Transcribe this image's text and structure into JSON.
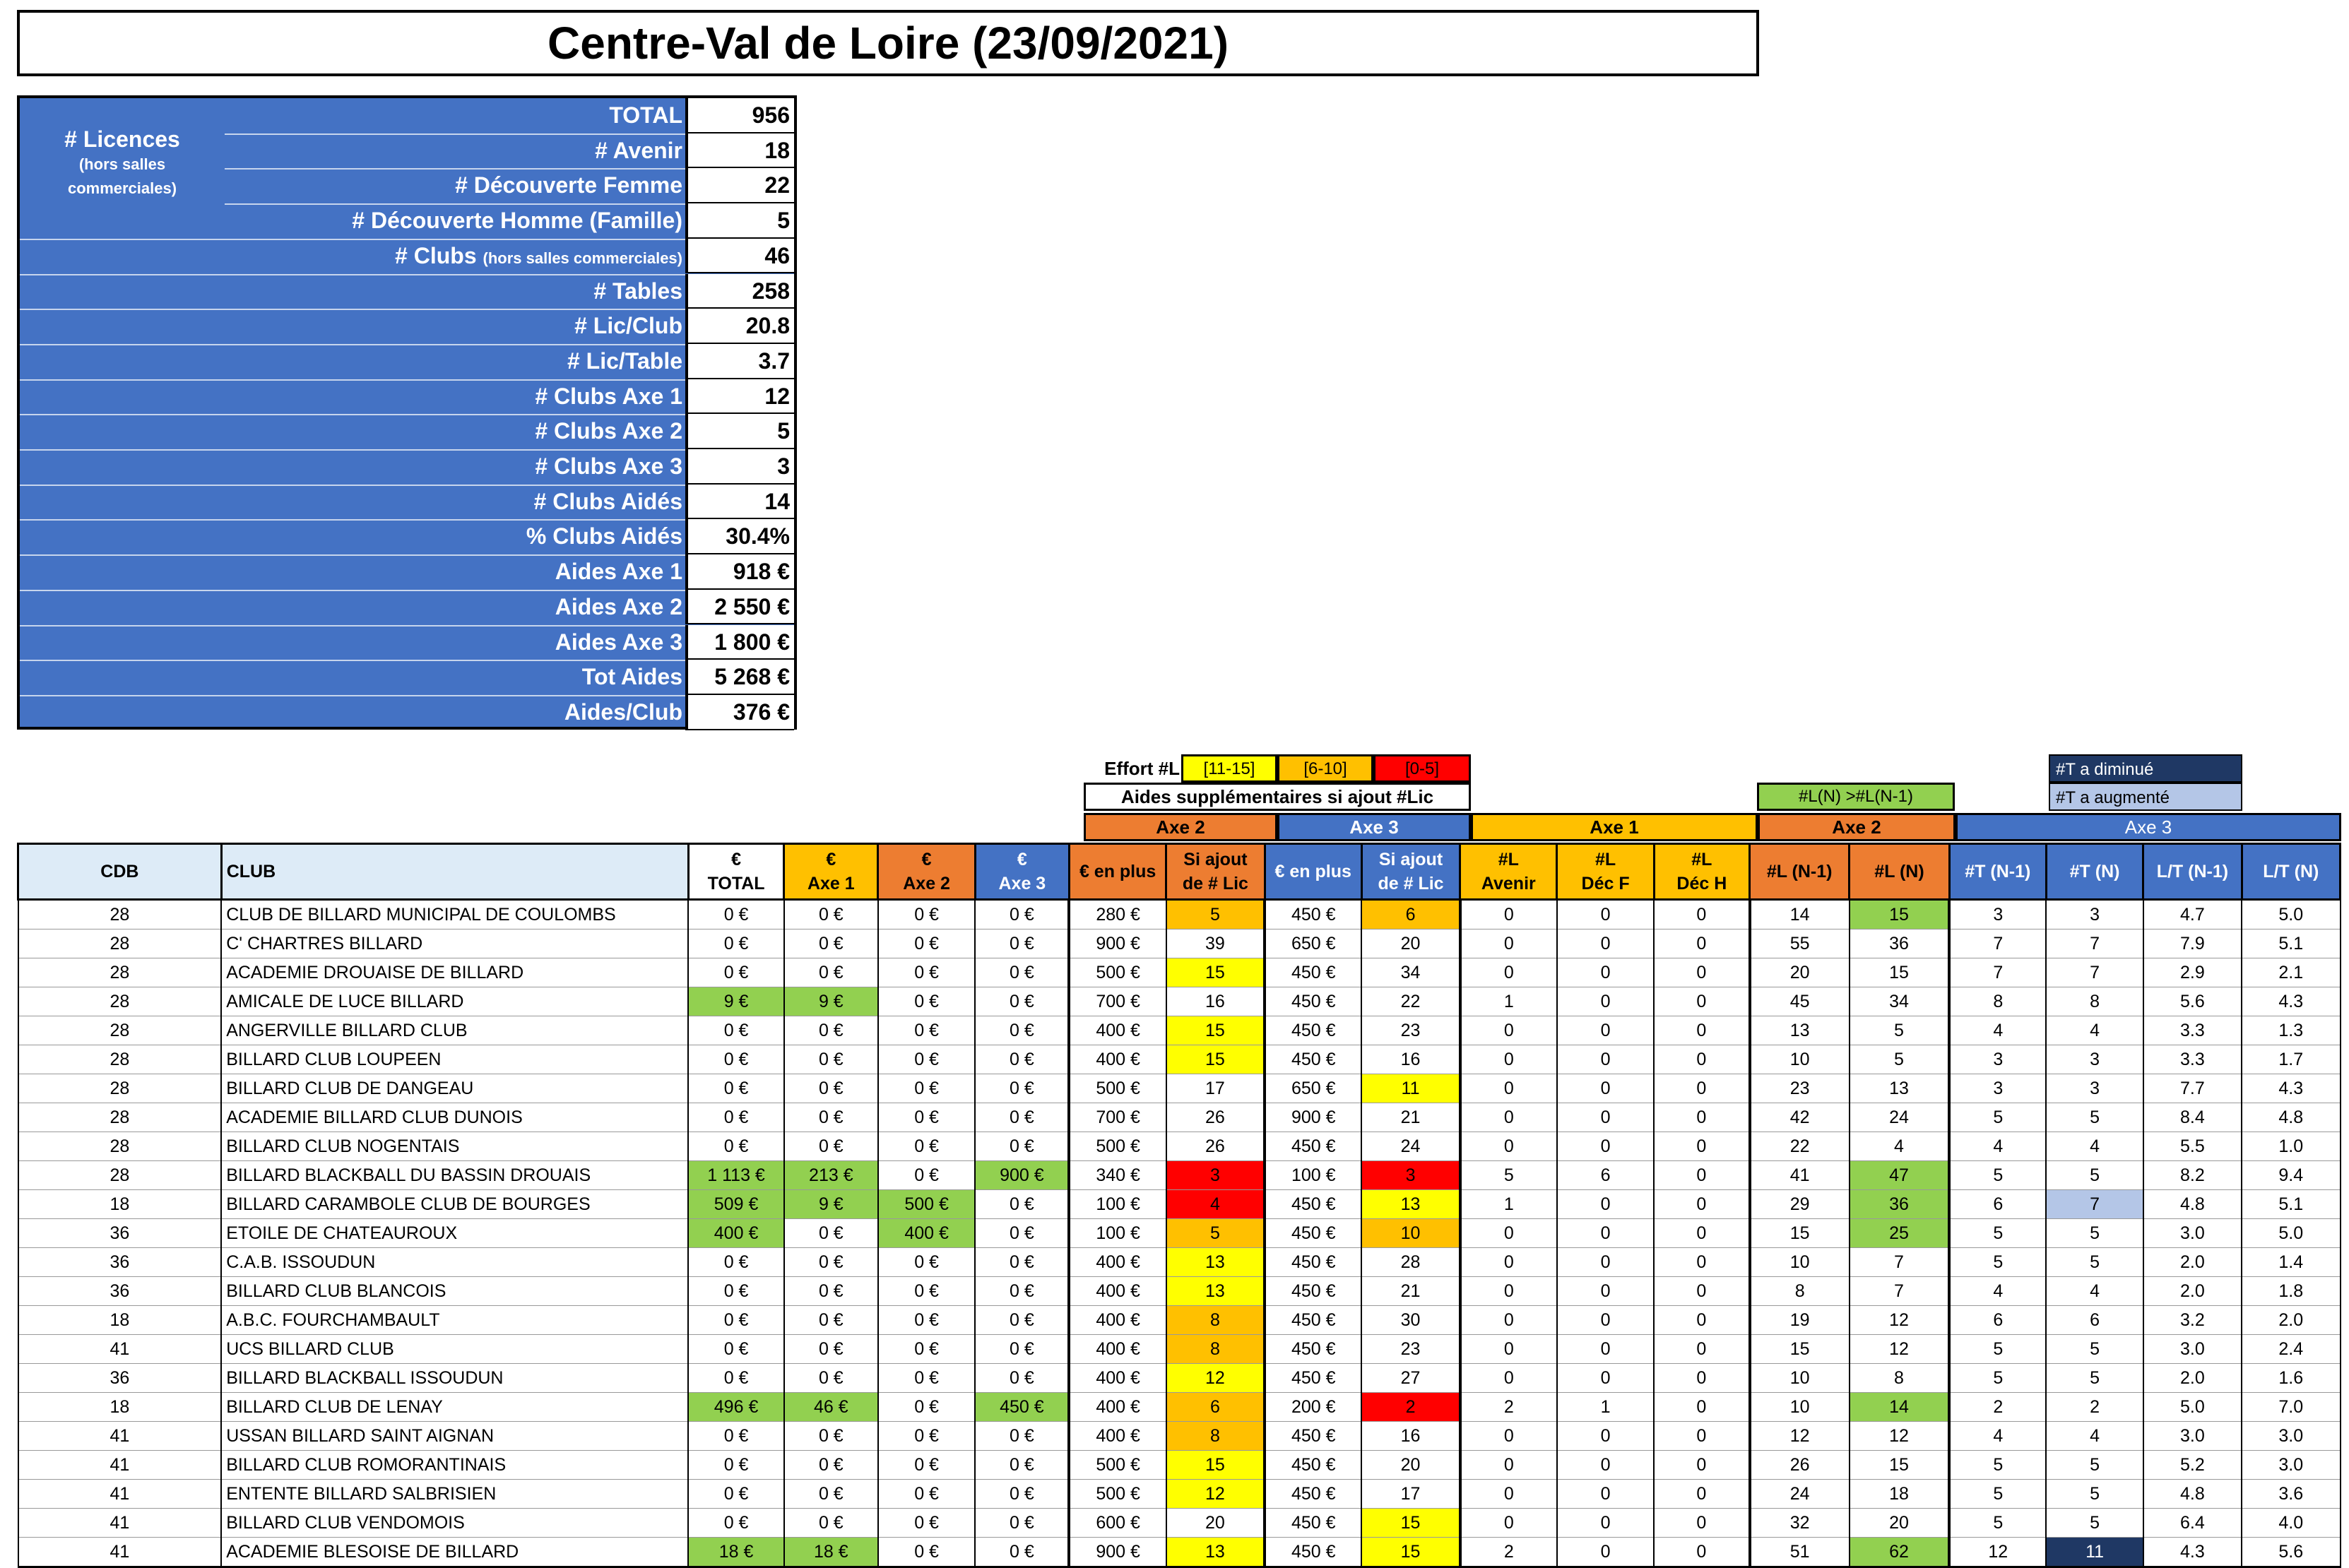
{
  "title": "Centre-Val de Loire (23/09/2021)",
  "summary": {
    "licences_label": "# Licences",
    "licences_sub1": "(hors salles",
    "licences_sub2": "commerciales)",
    "rows": [
      {
        "label": "TOTAL",
        "value": "956"
      },
      {
        "label": "# Avenir",
        "value": "18"
      },
      {
        "label": "# Découverte Femme",
        "value": "22"
      },
      {
        "label": "# Découverte Homme (Famille)",
        "value": "5"
      },
      {
        "label": "# Clubs",
        "label_small": "(hors salles commerciales)",
        "value": "46"
      },
      {
        "label": "# Tables",
        "value": "258"
      },
      {
        "label": "# Lic/Club",
        "value": "20.8"
      },
      {
        "label": "# Lic/Table",
        "value": "3.7"
      },
      {
        "label": "# Clubs Axe 1",
        "value": "12"
      },
      {
        "label": "# Clubs Axe 2",
        "value": "5"
      },
      {
        "label": "# Clubs Axe 3",
        "value": "3"
      },
      {
        "label": "# Clubs Aidés",
        "value": "14"
      },
      {
        "label": "% Clubs Aidés",
        "value": "30.4%"
      },
      {
        "label": "Aides Axe 1",
        "value": "918 €"
      },
      {
        "label": "Aides Axe 2",
        "value": "2 550 €"
      },
      {
        "label": "Aides Axe 3",
        "value": "1 800 €"
      },
      {
        "label": "Tot Aides",
        "value": "5 268 €"
      },
      {
        "label": "Aides/Club",
        "value": "376 €"
      }
    ]
  },
  "legend": {
    "effort_label": "Effort #L",
    "effort_ranges": [
      "[11-15]",
      "[6-10]",
      "[0-5]"
    ],
    "effort_colors": [
      "#ffff00",
      "#ffc000",
      "#ff0000"
    ],
    "aides_supplementaires": "Aides supplémentaires si  ajout #Lic",
    "ln_greater": "#L(N) >#L(N-1)",
    "t_diminue": "#T a diminué",
    "t_augmente": "#T a augmenté"
  },
  "groups": {
    "axe2_left": "Axe 2",
    "axe3_left": "Axe 3",
    "axe1": "Axe 1",
    "axe2_right": "Axe 2",
    "axe3_right": "Axe 3"
  },
  "headers": {
    "cdb": "CDB",
    "club": "CLUB",
    "total": [
      "€",
      "TOTAL"
    ],
    "axe1": [
      "€",
      "Axe 1"
    ],
    "axe2": [
      "€",
      "Axe 2"
    ],
    "axe3": [
      "€",
      "Axe 3"
    ],
    "en_plus_2": "€ en plus",
    "si_ajout_2": [
      "Si ajout",
      "de # Lic"
    ],
    "en_plus_3": "€ en plus",
    "si_ajout_3": [
      "Si ajout",
      "de # Lic"
    ],
    "l_avenir": [
      "#L",
      "Avenir"
    ],
    "l_dec_f": [
      "#L",
      "Déc F"
    ],
    "l_dec_h": [
      "#L",
      "Déc H"
    ],
    "l_n1": "#L (N-1)",
    "l_n": "#L (N)",
    "t_n1": "#T (N-1)",
    "t_n": "#T (N)",
    "lt_n1": "L/T (N-1)",
    "lt_n": "L/T (N)"
  },
  "rows": [
    {
      "cdb": "28",
      "club": "CLUB DE BILLARD MUNICIPAL DE COULOMBS",
      "total": "0 €",
      "a1": "0 €",
      "a2": "0 €",
      "a3": "0 €",
      "p2": "280 €",
      "s2": "5",
      "s2c": "orange",
      "p3": "450 €",
      "s3": "6",
      "s3c": "orange",
      "av": "0",
      "df": "0",
      "dh": "0",
      "ln1": "14",
      "ln": "15",
      "lnc": "green",
      "tn1": "3",
      "tn": "3",
      "tnc": "",
      "lt1": "4.7",
      "lt": "5.0",
      "tc": "",
      "a1c": "",
      "a2c": "",
      "a3c": ""
    },
    {
      "cdb": "28",
      "club": "C' CHARTRES BILLARD",
      "total": "0 €",
      "a1": "0 €",
      "a2": "0 €",
      "a3": "0 €",
      "p2": "900 €",
      "s2": "39",
      "s2c": "",
      "p3": "650 €",
      "s3": "20",
      "s3c": "",
      "av": "0",
      "df": "0",
      "dh": "0",
      "ln1": "55",
      "ln": "36",
      "lnc": "",
      "tn1": "7",
      "tn": "7",
      "tnc": "",
      "lt1": "7.9",
      "lt": "5.1",
      "tc": "",
      "a1c": "",
      "a2c": "",
      "a3c": ""
    },
    {
      "cdb": "28",
      "club": "ACADEMIE DROUAISE DE BILLARD",
      "total": "0 €",
      "a1": "0 €",
      "a2": "0 €",
      "a3": "0 €",
      "p2": "500 €",
      "s2": "15",
      "s2c": "yellow",
      "p3": "450 €",
      "s3": "34",
      "s3c": "",
      "av": "0",
      "df": "0",
      "dh": "0",
      "ln1": "20",
      "ln": "15",
      "lnc": "",
      "tn1": "7",
      "tn": "7",
      "tnc": "",
      "lt1": "2.9",
      "lt": "2.1",
      "tc": "",
      "a1c": "",
      "a2c": "",
      "a3c": ""
    },
    {
      "cdb": "28",
      "club": "AMICALE DE LUCE BILLARD",
      "total": "9 €",
      "a1": "9 €",
      "a2": "0 €",
      "a3": "0 €",
      "p2": "700 €",
      "s2": "16",
      "s2c": "",
      "p3": "450 €",
      "s3": "22",
      "s3c": "",
      "av": "1",
      "df": "0",
      "dh": "0",
      "ln1": "45",
      "ln": "34",
      "lnc": "",
      "tn1": "8",
      "tn": "8",
      "tnc": "",
      "lt1": "5.6",
      "lt": "4.3",
      "tc": "green",
      "a1c": "green",
      "a2c": "",
      "a3c": ""
    },
    {
      "cdb": "28",
      "club": "ANGERVILLE BILLARD CLUB",
      "total": "0 €",
      "a1": "0 €",
      "a2": "0 €",
      "a3": "0 €",
      "p2": "400 €",
      "s2": "15",
      "s2c": "yellow",
      "p3": "450 €",
      "s3": "23",
      "s3c": "",
      "av": "0",
      "df": "0",
      "dh": "0",
      "ln1": "13",
      "ln": "5",
      "lnc": "",
      "tn1": "4",
      "tn": "4",
      "tnc": "",
      "lt1": "3.3",
      "lt": "1.3",
      "tc": "",
      "a1c": "",
      "a2c": "",
      "a3c": ""
    },
    {
      "cdb": "28",
      "club": "BILLARD CLUB LOUPEEN",
      "total": "0 €",
      "a1": "0 €",
      "a2": "0 €",
      "a3": "0 €",
      "p2": "400 €",
      "s2": "15",
      "s2c": "yellow",
      "p3": "450 €",
      "s3": "16",
      "s3c": "",
      "av": "0",
      "df": "0",
      "dh": "0",
      "ln1": "10",
      "ln": "5",
      "lnc": "",
      "tn1": "3",
      "tn": "3",
      "tnc": "",
      "lt1": "3.3",
      "lt": "1.7",
      "tc": "",
      "a1c": "",
      "a2c": "",
      "a3c": ""
    },
    {
      "cdb": "28",
      "club": "BILLARD CLUB DE DANGEAU",
      "total": "0 €",
      "a1": "0 €",
      "a2": "0 €",
      "a3": "0 €",
      "p2": "500 €",
      "s2": "17",
      "s2c": "",
      "p3": "650 €",
      "s3": "11",
      "s3c": "yellow",
      "av": "0",
      "df": "0",
      "dh": "0",
      "ln1": "23",
      "ln": "13",
      "lnc": "",
      "tn1": "3",
      "tn": "3",
      "tnc": "",
      "lt1": "7.7",
      "lt": "4.3",
      "tc": "",
      "a1c": "",
      "a2c": "",
      "a3c": ""
    },
    {
      "cdb": "28",
      "club": "ACADEMIE BILLARD CLUB DUNOIS",
      "total": "0 €",
      "a1": "0 €",
      "a2": "0 €",
      "a3": "0 €",
      "p2": "700 €",
      "s2": "26",
      "s2c": "",
      "p3": "900 €",
      "s3": "21",
      "s3c": "",
      "av": "0",
      "df": "0",
      "dh": "0",
      "ln1": "42",
      "ln": "24",
      "lnc": "",
      "tn1": "5",
      "tn": "5",
      "tnc": "",
      "lt1": "8.4",
      "lt": "4.8",
      "tc": "",
      "a1c": "",
      "a2c": "",
      "a3c": ""
    },
    {
      "cdb": "28",
      "club": "BILLARD CLUB NOGENTAIS",
      "total": "0 €",
      "a1": "0 €",
      "a2": "0 €",
      "a3": "0 €",
      "p2": "500 €",
      "s2": "26",
      "s2c": "",
      "p3": "450 €",
      "s3": "24",
      "s3c": "",
      "av": "0",
      "df": "0",
      "dh": "0",
      "ln1": "22",
      "ln": "4",
      "lnc": "",
      "tn1": "4",
      "tn": "4",
      "tnc": "",
      "lt1": "5.5",
      "lt": "1.0",
      "tc": "",
      "a1c": "",
      "a2c": "",
      "a3c": ""
    },
    {
      "cdb": "28",
      "club": "BILLARD BLACKBALL DU BASSIN DROUAIS",
      "total": "1 113 €",
      "a1": "213 €",
      "a2": "0 €",
      "a3": "900 €",
      "p2": "340 €",
      "s2": "3",
      "s2c": "red",
      "p3": "100 €",
      "s3": "3",
      "s3c": "red",
      "av": "5",
      "df": "6",
      "dh": "0",
      "ln1": "41",
      "ln": "47",
      "lnc": "green",
      "tn1": "5",
      "tn": "5",
      "tnc": "",
      "lt1": "8.2",
      "lt": "9.4",
      "tc": "green",
      "a1c": "green",
      "a2c": "",
      "a3c": "green"
    },
    {
      "cdb": "18",
      "club": "BILLARD CARAMBOLE CLUB DE BOURGES",
      "total": "509 €",
      "a1": "9 €",
      "a2": "500 €",
      "a3": "0 €",
      "p2": "100 €",
      "s2": "4",
      "s2c": "red",
      "p3": "450 €",
      "s3": "13",
      "s3c": "yellow",
      "av": "1",
      "df": "0",
      "dh": "0",
      "ln1": "29",
      "ln": "36",
      "lnc": "green",
      "tn1": "6",
      "tn": "7",
      "tnc": "lblue",
      "lt1": "4.8",
      "lt": "5.1",
      "tc": "green",
      "a1c": "green",
      "a2c": "green",
      "a3c": ""
    },
    {
      "cdb": "36",
      "club": "ETOILE DE CHATEAUROUX",
      "total": "400 €",
      "a1": "0 €",
      "a2": "400 €",
      "a3": "0 €",
      "p2": "100 €",
      "s2": "5",
      "s2c": "orange",
      "p3": "450 €",
      "s3": "10",
      "s3c": "orange",
      "av": "0",
      "df": "0",
      "dh": "0",
      "ln1": "15",
      "ln": "25",
      "lnc": "green",
      "tn1": "5",
      "tn": "5",
      "tnc": "",
      "lt1": "3.0",
      "lt": "5.0",
      "tc": "green",
      "a1c": "",
      "a2c": "green",
      "a3c": ""
    },
    {
      "cdb": "36",
      "club": "C.A.B. ISSOUDUN",
      "total": "0 €",
      "a1": "0 €",
      "a2": "0 €",
      "a3": "0 €",
      "p2": "400 €",
      "s2": "13",
      "s2c": "yellow",
      "p3": "450 €",
      "s3": "28",
      "s3c": "",
      "av": "0",
      "df": "0",
      "dh": "0",
      "ln1": "10",
      "ln": "7",
      "lnc": "",
      "tn1": "5",
      "tn": "5",
      "tnc": "",
      "lt1": "2.0",
      "lt": "1.4",
      "tc": "",
      "a1c": "",
      "a2c": "",
      "a3c": ""
    },
    {
      "cdb": "36",
      "club": "BILLARD CLUB BLANCOIS",
      "total": "0 €",
      "a1": "0 €",
      "a2": "0 €",
      "a3": "0 €",
      "p2": "400 €",
      "s2": "13",
      "s2c": "yellow",
      "p3": "450 €",
      "s3": "21",
      "s3c": "",
      "av": "0",
      "df": "0",
      "dh": "0",
      "ln1": "8",
      "ln": "7",
      "lnc": "",
      "tn1": "4",
      "tn": "4",
      "tnc": "",
      "lt1": "2.0",
      "lt": "1.8",
      "tc": "",
      "a1c": "",
      "a2c": "",
      "a3c": ""
    },
    {
      "cdb": "18",
      "club": "A.B.C. FOURCHAMBAULT",
      "total": "0 €",
      "a1": "0 €",
      "a2": "0 €",
      "a3": "0 €",
      "p2": "400 €",
      "s2": "8",
      "s2c": "orange",
      "p3": "450 €",
      "s3": "30",
      "s3c": "",
      "av": "0",
      "df": "0",
      "dh": "0",
      "ln1": "19",
      "ln": "12",
      "lnc": "",
      "tn1": "6",
      "tn": "6",
      "tnc": "",
      "lt1": "3.2",
      "lt": "2.0",
      "tc": "",
      "a1c": "",
      "a2c": "",
      "a3c": ""
    },
    {
      "cdb": "41",
      "club": "UCS BILLARD CLUB",
      "total": "0 €",
      "a1": "0 €",
      "a2": "0 €",
      "a3": "0 €",
      "p2": "400 €",
      "s2": "8",
      "s2c": "orange",
      "p3": "450 €",
      "s3": "23",
      "s3c": "",
      "av": "0",
      "df": "0",
      "dh": "0",
      "ln1": "15",
      "ln": "12",
      "lnc": "",
      "tn1": "5",
      "tn": "5",
      "tnc": "",
      "lt1": "3.0",
      "lt": "2.4",
      "tc": "",
      "a1c": "",
      "a2c": "",
      "a3c": ""
    },
    {
      "cdb": "36",
      "club": "BILLARD BLACKBALL ISSOUDUN",
      "total": "0 €",
      "a1": "0 €",
      "a2": "0 €",
      "a3": "0 €",
      "p2": "400 €",
      "s2": "12",
      "s2c": "yellow",
      "p3": "450 €",
      "s3": "27",
      "s3c": "",
      "av": "0",
      "df": "0",
      "dh": "0",
      "ln1": "10",
      "ln": "8",
      "lnc": "",
      "tn1": "5",
      "tn": "5",
      "tnc": "",
      "lt1": "2.0",
      "lt": "1.6",
      "tc": "",
      "a1c": "",
      "a2c": "",
      "a3c": ""
    },
    {
      "cdb": "18",
      "club": "BILLARD CLUB DE LENAY",
      "total": "496 €",
      "a1": "46 €",
      "a2": "0 €",
      "a3": "450 €",
      "p2": "400 €",
      "s2": "6",
      "s2c": "orange",
      "p3": "200 €",
      "s3": "2",
      "s3c": "red",
      "av": "2",
      "df": "1",
      "dh": "0",
      "ln1": "10",
      "ln": "14",
      "lnc": "green",
      "tn1": "2",
      "tn": "2",
      "tnc": "",
      "lt1": "5.0",
      "lt": "7.0",
      "tc": "green",
      "a1c": "green",
      "a2c": "",
      "a3c": "green"
    },
    {
      "cdb": "41",
      "club": "USSAN BILLARD SAINT AIGNAN",
      "total": "0 €",
      "a1": "0 €",
      "a2": "0 €",
      "a3": "0 €",
      "p2": "400 €",
      "s2": "8",
      "s2c": "orange",
      "p3": "450 €",
      "s3": "16",
      "s3c": "",
      "av": "0",
      "df": "0",
      "dh": "0",
      "ln1": "12",
      "ln": "12",
      "lnc": "",
      "tn1": "4",
      "tn": "4",
      "tnc": "",
      "lt1": "3.0",
      "lt": "3.0",
      "tc": "",
      "a1c": "",
      "a2c": "",
      "a3c": ""
    },
    {
      "cdb": "41",
      "club": "BILLARD CLUB ROMORANTINAIS",
      "total": "0 €",
      "a1": "0 €",
      "a2": "0 €",
      "a3": "0 €",
      "p2": "500 €",
      "s2": "15",
      "s2c": "yellow",
      "p3": "450 €",
      "s3": "20",
      "s3c": "",
      "av": "0",
      "df": "0",
      "dh": "0",
      "ln1": "26",
      "ln": "15",
      "lnc": "",
      "tn1": "5",
      "tn": "5",
      "tnc": "",
      "lt1": "5.2",
      "lt": "3.0",
      "tc": "",
      "a1c": "",
      "a2c": "",
      "a3c": ""
    },
    {
      "cdb": "41",
      "club": "ENTENTE BILLARD SALBRISIEN",
      "total": "0 €",
      "a1": "0 €",
      "a2": "0 €",
      "a3": "0 €",
      "p2": "500 €",
      "s2": "12",
      "s2c": "yellow",
      "p3": "450 €",
      "s3": "17",
      "s3c": "",
      "av": "0",
      "df": "0",
      "dh": "0",
      "ln1": "24",
      "ln": "18",
      "lnc": "",
      "tn1": "5",
      "tn": "5",
      "tnc": "",
      "lt1": "4.8",
      "lt": "3.6",
      "tc": "",
      "a1c": "",
      "a2c": "",
      "a3c": ""
    },
    {
      "cdb": "41",
      "club": "BILLARD CLUB VENDOMOIS",
      "total": "0 €",
      "a1": "0 €",
      "a2": "0 €",
      "a3": "0 €",
      "p2": "600 €",
      "s2": "20",
      "s2c": "",
      "p3": "450 €",
      "s3": "15",
      "s3c": "yellow",
      "av": "0",
      "df": "0",
      "dh": "0",
      "ln1": "32",
      "ln": "20",
      "lnc": "",
      "tn1": "5",
      "tn": "5",
      "tnc": "",
      "lt1": "6.4",
      "lt": "4.0",
      "tc": "",
      "a1c": "",
      "a2c": "",
      "a3c": ""
    },
    {
      "cdb": "41",
      "club": "ACADEMIE BLESOISE DE BILLARD",
      "total": "18 €",
      "a1": "18 €",
      "a2": "0 €",
      "a3": "0 €",
      "p2": "900 €",
      "s2": "13",
      "s2c": "yellow",
      "p3": "450 €",
      "s3": "15",
      "s3c": "yellow",
      "av": "2",
      "df": "0",
      "dh": "0",
      "ln1": "51",
      "ln": "62",
      "lnc": "green",
      "tn1": "12",
      "tn": "11",
      "tnc": "dblue",
      "lt1": "4.3",
      "lt": "5.6",
      "tc": "green",
      "a1c": "green",
      "a2c": "",
      "a3c": ""
    }
  ]
}
